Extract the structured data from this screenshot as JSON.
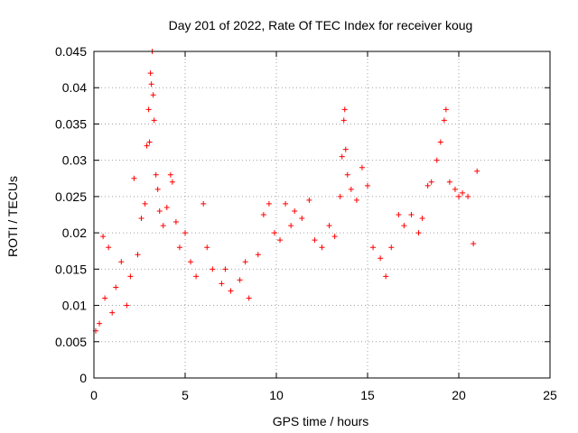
{
  "chart_data": {
    "type": "scatter",
    "title": "Day 201 of 2022, Rate Of TEC Index for receiver koug",
    "xlabel": "GPS time / hours",
    "ylabel": "ROTI / TECUs",
    "xlim": [
      0,
      25
    ],
    "ylim": [
      0,
      0.045
    ],
    "x_ticks": [
      0,
      5,
      10,
      15,
      20,
      25
    ],
    "x_tick_labels": [
      "0",
      "5",
      "10",
      "15",
      "20",
      "25"
    ],
    "y_ticks": [
      0,
      0.005,
      0.01,
      0.015,
      0.02,
      0.025,
      0.03,
      0.035,
      0.04,
      0.045
    ],
    "y_tick_labels": [
      "0",
      "0.005",
      "0.01",
      "0.015",
      "0.02",
      "0.025",
      "0.03",
      "0.035",
      "0.04",
      "0.045"
    ],
    "grid": true,
    "marker": "+",
    "color": "#ff0000",
    "series": [
      {
        "points": [
          [
            0.1,
            0.0065
          ],
          [
            0.3,
            0.0075
          ],
          [
            0.5,
            0.0195
          ],
          [
            0.6,
            0.011
          ],
          [
            0.8,
            0.018
          ],
          [
            1.0,
            0.009
          ],
          [
            1.2,
            0.0125
          ],
          [
            1.5,
            0.016
          ],
          [
            1.8,
            0.01
          ],
          [
            2.0,
            0.014
          ],
          [
            2.2,
            0.0275
          ],
          [
            2.4,
            0.017
          ],
          [
            2.6,
            0.022
          ],
          [
            2.8,
            0.024
          ],
          [
            2.9,
            0.032
          ],
          [
            3.0,
            0.037
          ],
          [
            3.05,
            0.0325
          ],
          [
            3.1,
            0.042
          ],
          [
            3.15,
            0.0405
          ],
          [
            3.2,
            0.045
          ],
          [
            3.25,
            0.039
          ],
          [
            3.3,
            0.0355
          ],
          [
            3.4,
            0.028
          ],
          [
            3.5,
            0.026
          ],
          [
            3.6,
            0.023
          ],
          [
            3.8,
            0.021
          ],
          [
            4.0,
            0.0235
          ],
          [
            4.2,
            0.028
          ],
          [
            4.3,
            0.027
          ],
          [
            4.5,
            0.0215
          ],
          [
            4.7,
            0.018
          ],
          [
            5.0,
            0.02
          ],
          [
            5.3,
            0.016
          ],
          [
            5.6,
            0.014
          ],
          [
            6.0,
            0.024
          ],
          [
            6.2,
            0.018
          ],
          [
            6.5,
            0.015
          ],
          [
            7.0,
            0.013
          ],
          [
            7.2,
            0.015
          ],
          [
            7.5,
            0.012
          ],
          [
            8.0,
            0.0135
          ],
          [
            8.3,
            0.016
          ],
          [
            8.5,
            0.011
          ],
          [
            9.0,
            0.017
          ],
          [
            9.3,
            0.0225
          ],
          [
            9.6,
            0.024
          ],
          [
            9.9,
            0.02
          ],
          [
            10.2,
            0.019
          ],
          [
            10.5,
            0.024
          ],
          [
            10.8,
            0.021
          ],
          [
            11.0,
            0.023
          ],
          [
            11.4,
            0.022
          ],
          [
            11.8,
            0.0245
          ],
          [
            12.1,
            0.019
          ],
          [
            12.5,
            0.018
          ],
          [
            12.9,
            0.021
          ],
          [
            13.2,
            0.0195
          ],
          [
            13.5,
            0.025
          ],
          [
            13.6,
            0.0305
          ],
          [
            13.7,
            0.0355
          ],
          [
            13.75,
            0.037
          ],
          [
            13.8,
            0.0315
          ],
          [
            13.9,
            0.028
          ],
          [
            14.1,
            0.026
          ],
          [
            14.4,
            0.0245
          ],
          [
            14.7,
            0.029
          ],
          [
            15.0,
            0.0265
          ],
          [
            15.3,
            0.018
          ],
          [
            15.7,
            0.0165
          ],
          [
            16.0,
            0.014
          ],
          [
            16.3,
            0.018
          ],
          [
            16.7,
            0.0225
          ],
          [
            17.0,
            0.021
          ],
          [
            17.4,
            0.0225
          ],
          [
            17.8,
            0.02
          ],
          [
            18.0,
            0.022
          ],
          [
            18.3,
            0.0265
          ],
          [
            18.5,
            0.027
          ],
          [
            18.8,
            0.03
          ],
          [
            19.0,
            0.0325
          ],
          [
            19.2,
            0.0355
          ],
          [
            19.3,
            0.037
          ],
          [
            19.5,
            0.027
          ],
          [
            19.8,
            0.026
          ],
          [
            20.0,
            0.025
          ],
          [
            20.2,
            0.0255
          ],
          [
            20.5,
            0.025
          ],
          [
            20.8,
            0.0185
          ],
          [
            21.0,
            0.0285
          ]
        ]
      }
    ]
  }
}
